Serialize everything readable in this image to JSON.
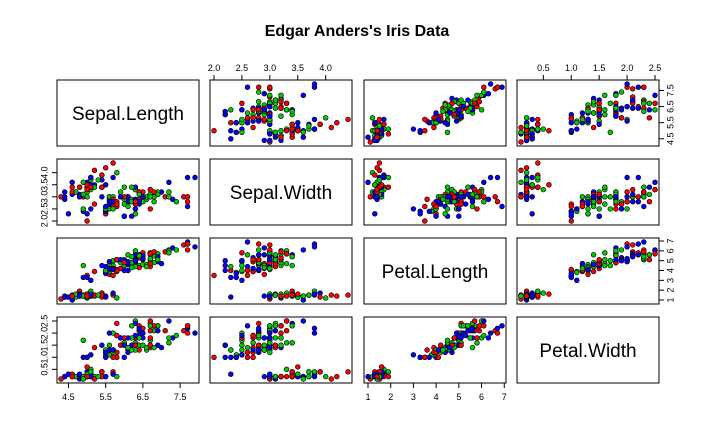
{
  "chart_data": {
    "type": "scatter",
    "title": "Edgar Anders's Iris Data",
    "variables": [
      "Sepal.Length",
      "Sepal.Width",
      "Petal.Length",
      "Petal.Width"
    ],
    "ranges": {
      "Sepal.Length": [
        4.3,
        7.9
      ],
      "Sepal.Width": [
        2.0,
        4.4
      ],
      "Petal.Length": [
        1.0,
        6.9
      ],
      "Petal.Width": [
        0.1,
        2.5
      ]
    },
    "ticks": {
      "Sepal.Length": [
        "4.5",
        "5.5",
        "6.5",
        "7.5"
      ],
      "Sepal.Width": [
        "2.0",
        "2.5",
        "3.0",
        "3.5",
        "4.0"
      ],
      "Petal.Length": [
        "1",
        "2",
        "3",
        "4",
        "5",
        "6",
        "7"
      ],
      "Petal.Width": [
        "0.5",
        "1.0",
        "1.5",
        "2.0",
        "2.5"
      ]
    },
    "colors": [
      "#ff0000",
      "#00cc00",
      "#0000ff"
    ],
    "series": [
      {
        "values": [
          [
            5.1,
            3.5,
            1.4,
            0.2
          ],
          [
            4.9,
            3.0,
            1.4,
            0.2
          ],
          [
            4.7,
            3.2,
            1.3,
            0.2
          ],
          [
            4.6,
            3.1,
            1.5,
            0.2
          ],
          [
            5.0,
            3.6,
            1.4,
            0.2
          ],
          [
            5.4,
            3.9,
            1.7,
            0.4
          ],
          [
            4.6,
            3.4,
            1.4,
            0.3
          ],
          [
            5.0,
            3.4,
            1.5,
            0.2
          ],
          [
            4.4,
            2.9,
            1.4,
            0.2
          ],
          [
            4.9,
            3.1,
            1.5,
            0.1
          ],
          [
            5.4,
            3.7,
            1.5,
            0.2
          ],
          [
            4.8,
            3.4,
            1.6,
            0.2
          ],
          [
            4.8,
            3.0,
            1.4,
            0.1
          ],
          [
            4.3,
            3.0,
            1.1,
            0.1
          ],
          [
            5.8,
            4.0,
            1.2,
            0.2
          ],
          [
            5.7,
            4.4,
            1.5,
            0.4
          ],
          [
            5.4,
            3.9,
            1.3,
            0.4
          ],
          [
            5.1,
            3.5,
            1.4,
            0.3
          ],
          [
            5.7,
            3.8,
            1.7,
            0.3
          ],
          [
            5.1,
            3.8,
            1.5,
            0.3
          ],
          [
            5.4,
            3.4,
            1.7,
            0.2
          ],
          [
            5.1,
            3.7,
            1.5,
            0.4
          ],
          [
            4.6,
            3.6,
            1.0,
            0.2
          ],
          [
            5.1,
            3.3,
            1.7,
            0.5
          ],
          [
            4.8,
            3.4,
            1.9,
            0.2
          ],
          [
            5.0,
            3.0,
            1.6,
            0.2
          ],
          [
            5.0,
            3.4,
            1.6,
            0.4
          ],
          [
            5.2,
            3.5,
            1.5,
            0.2
          ],
          [
            5.2,
            3.4,
            1.4,
            0.2
          ],
          [
            4.7,
            3.2,
            1.6,
            0.2
          ],
          [
            4.8,
            3.1,
            1.6,
            0.2
          ],
          [
            5.4,
            3.4,
            1.5,
            0.4
          ],
          [
            5.2,
            4.1,
            1.5,
            0.1
          ],
          [
            5.5,
            4.2,
            1.4,
            0.2
          ],
          [
            4.9,
            3.1,
            1.5,
            0.2
          ],
          [
            5.0,
            3.2,
            1.2,
            0.2
          ],
          [
            5.5,
            3.5,
            1.3,
            0.2
          ],
          [
            4.9,
            3.6,
            1.4,
            0.1
          ],
          [
            4.4,
            3.0,
            1.3,
            0.2
          ],
          [
            5.1,
            3.4,
            1.5,
            0.2
          ],
          [
            5.0,
            3.5,
            1.3,
            0.3
          ],
          [
            4.5,
            2.3,
            1.3,
            0.3
          ],
          [
            4.4,
            3.2,
            1.3,
            0.2
          ],
          [
            5.0,
            3.5,
            1.6,
            0.6
          ],
          [
            5.1,
            3.8,
            1.9,
            0.4
          ],
          [
            4.8,
            3.0,
            1.4,
            0.3
          ],
          [
            5.1,
            3.8,
            1.6,
            0.2
          ],
          [
            4.6,
            3.2,
            1.4,
            0.2
          ],
          [
            5.3,
            3.7,
            1.5,
            0.2
          ],
          [
            5.0,
            3.3,
            1.4,
            0.2
          ],
          [
            7.0,
            3.2,
            4.7,
            1.4
          ],
          [
            6.4,
            3.2,
            4.5,
            1.5
          ],
          [
            6.9,
            3.1,
            4.9,
            1.5
          ],
          [
            5.5,
            2.3,
            4.0,
            1.3
          ],
          [
            6.5,
            2.8,
            4.6,
            1.5
          ],
          [
            5.7,
            2.8,
            4.5,
            1.3
          ],
          [
            6.3,
            3.3,
            4.7,
            1.6
          ],
          [
            4.9,
            2.4,
            3.3,
            1.0
          ],
          [
            6.6,
            2.9,
            4.6,
            1.3
          ],
          [
            5.2,
            2.7,
            3.9,
            1.4
          ],
          [
            5.0,
            2.0,
            3.5,
            1.0
          ],
          [
            5.9,
            3.0,
            4.2,
            1.5
          ],
          [
            6.0,
            2.2,
            4.0,
            1.0
          ],
          [
            6.1,
            2.9,
            4.7,
            1.4
          ],
          [
            5.6,
            2.9,
            3.6,
            1.3
          ],
          [
            6.7,
            3.1,
            4.4,
            1.4
          ],
          [
            5.6,
            3.0,
            4.5,
            1.5
          ],
          [
            5.8,
            2.7,
            4.1,
            1.0
          ],
          [
            6.2,
            2.2,
            4.5,
            1.5
          ],
          [
            5.6,
            2.5,
            3.9,
            1.1
          ],
          [
            5.9,
            3.2,
            4.8,
            1.8
          ],
          [
            6.1,
            2.8,
            4.0,
            1.3
          ],
          [
            6.3,
            2.5,
            4.9,
            1.5
          ],
          [
            6.1,
            2.8,
            4.7,
            1.2
          ],
          [
            6.4,
            2.9,
            4.3,
            1.3
          ],
          [
            6.6,
            3.0,
            4.4,
            1.4
          ],
          [
            6.8,
            2.8,
            4.8,
            1.4
          ],
          [
            6.7,
            3.0,
            5.0,
            1.7
          ],
          [
            6.0,
            2.9,
            4.5,
            1.5
          ],
          [
            5.7,
            2.6,
            3.5,
            1.0
          ],
          [
            5.5,
            2.4,
            3.8,
            1.1
          ],
          [
            5.5,
            2.4,
            3.7,
            1.0
          ],
          [
            5.8,
            2.7,
            3.9,
            1.2
          ],
          [
            6.0,
            2.7,
            5.1,
            1.6
          ],
          [
            5.4,
            3.0,
            4.5,
            1.5
          ],
          [
            6.0,
            3.4,
            4.5,
            1.6
          ],
          [
            6.7,
            3.1,
            4.7,
            1.5
          ],
          [
            6.3,
            2.3,
            4.4,
            1.3
          ],
          [
            5.6,
            3.0,
            4.1,
            1.3
          ],
          [
            5.5,
            2.5,
            4.0,
            1.3
          ],
          [
            5.5,
            2.6,
            4.4,
            1.2
          ],
          [
            6.1,
            3.0,
            4.6,
            1.4
          ],
          [
            5.8,
            2.6,
            4.0,
            1.2
          ],
          [
            5.0,
            2.3,
            3.3,
            1.0
          ],
          [
            5.6,
            2.7,
            4.2,
            1.3
          ],
          [
            5.7,
            3.0,
            4.2,
            1.2
          ],
          [
            5.7,
            2.9,
            4.2,
            1.3
          ],
          [
            6.2,
            2.9,
            4.3,
            1.3
          ],
          [
            5.1,
            2.5,
            3.0,
            1.1
          ],
          [
            5.7,
            2.8,
            4.1,
            1.3
          ],
          [
            6.3,
            3.3,
            6.0,
            2.5
          ],
          [
            5.8,
            2.7,
            5.1,
            1.9
          ],
          [
            7.1,
            3.0,
            5.9,
            2.1
          ],
          [
            6.3,
            2.9,
            5.6,
            1.8
          ],
          [
            6.5,
            3.0,
            5.8,
            2.2
          ],
          [
            7.6,
            3.0,
            6.6,
            2.1
          ],
          [
            4.9,
            2.5,
            4.5,
            1.7
          ],
          [
            7.3,
            2.9,
            6.3,
            1.8
          ],
          [
            6.7,
            2.5,
            5.8,
            1.8
          ],
          [
            7.2,
            3.6,
            6.1,
            2.5
          ],
          [
            6.5,
            3.2,
            5.1,
            2.0
          ],
          [
            6.4,
            2.7,
            5.3,
            1.9
          ],
          [
            6.8,
            3.0,
            5.5,
            2.1
          ],
          [
            5.7,
            2.5,
            5.0,
            2.0
          ],
          [
            5.8,
            2.8,
            5.1,
            2.4
          ],
          [
            6.4,
            3.2,
            5.3,
            2.3
          ],
          [
            6.5,
            3.0,
            5.5,
            1.8
          ],
          [
            7.7,
            3.8,
            6.7,
            2.2
          ],
          [
            7.7,
            2.6,
            6.9,
            2.3
          ],
          [
            6.0,
            2.2,
            5.0,
            1.5
          ],
          [
            6.9,
            3.2,
            5.7,
            2.3
          ],
          [
            5.6,
            2.8,
            4.9,
            2.0
          ],
          [
            7.7,
            2.8,
            6.7,
            2.0
          ],
          [
            6.3,
            2.7,
            4.9,
            1.8
          ],
          [
            6.7,
            3.3,
            5.7,
            2.1
          ],
          [
            7.2,
            3.2,
            6.0,
            1.8
          ],
          [
            6.2,
            2.8,
            4.8,
            1.8
          ],
          [
            6.1,
            3.0,
            4.9,
            1.8
          ],
          [
            6.4,
            2.8,
            5.6,
            2.1
          ],
          [
            7.2,
            3.0,
            5.8,
            1.6
          ],
          [
            7.4,
            2.8,
            6.1,
            1.9
          ],
          [
            7.9,
            3.8,
            6.4,
            2.0
          ],
          [
            6.4,
            2.8,
            5.6,
            2.2
          ],
          [
            6.3,
            2.8,
            5.1,
            1.5
          ],
          [
            6.1,
            2.6,
            5.6,
            1.4
          ],
          [
            7.7,
            3.0,
            6.1,
            2.3
          ],
          [
            6.3,
            3.4,
            5.6,
            2.4
          ],
          [
            6.4,
            3.1,
            5.5,
            1.8
          ],
          [
            6.0,
            3.0,
            4.8,
            1.8
          ],
          [
            6.9,
            3.1,
            5.4,
            2.1
          ],
          [
            6.7,
            3.1,
            5.6,
            2.4
          ],
          [
            6.9,
            3.1,
            5.1,
            2.3
          ],
          [
            5.8,
            2.7,
            5.1,
            1.9
          ],
          [
            6.8,
            3.2,
            5.9,
            2.3
          ],
          [
            6.7,
            3.3,
            5.7,
            2.5
          ],
          [
            6.7,
            3.0,
            5.2,
            2.3
          ],
          [
            6.3,
            2.5,
            5.0,
            1.9
          ],
          [
            6.5,
            3.0,
            5.2,
            2.0
          ],
          [
            6.2,
            3.4,
            5.4,
            2.3
          ],
          [
            5.9,
            3.0,
            5.1,
            1.8
          ]
        ]
      }
    ],
    "point_colors": "randomly assigned per point from colors (shuffled mix of red, green, blue)"
  }
}
